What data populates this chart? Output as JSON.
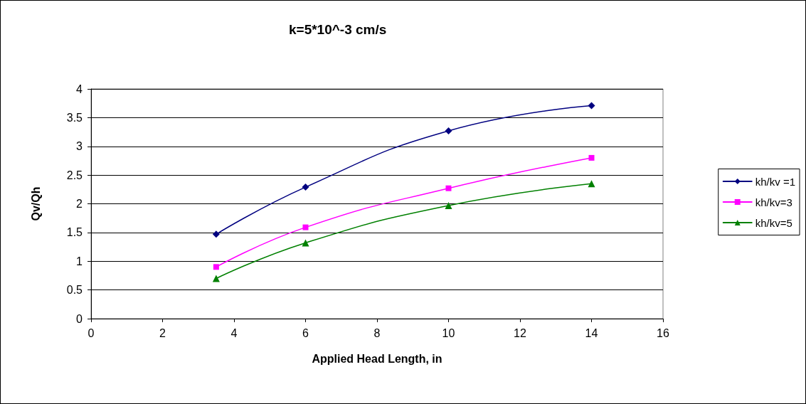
{
  "chart_data": {
    "type": "line",
    "title": "k=5*10^-3 cm/s",
    "xlabel": "Applied Head Length, in",
    "ylabel": "Qv/Qh",
    "x": [
      3.5,
      6,
      10,
      14
    ],
    "series": [
      {
        "name": "kh/kv =1",
        "color": "#000080",
        "marker": "diamond",
        "values": [
          1.47,
          2.29,
          3.27,
          3.71
        ]
      },
      {
        "name": "kh/kv=3",
        "color": "#ff00ff",
        "marker": "square",
        "values": [
          0.9,
          1.59,
          2.27,
          2.8
        ]
      },
      {
        "name": "kh/kv=5",
        "color": "#008000",
        "marker": "triangle",
        "values": [
          0.7,
          1.32,
          1.97,
          2.35
        ]
      }
    ],
    "xlim": [
      0,
      16
    ],
    "xticks": [
      0,
      2,
      4,
      6,
      8,
      10,
      12,
      14,
      16
    ],
    "ylim": [
      0,
      4
    ],
    "yticks": [
      0,
      0.5,
      1,
      1.5,
      2,
      2.5,
      3,
      3.5,
      4
    ],
    "grid": "y",
    "legend": "right",
    "line_style": "solid"
  }
}
